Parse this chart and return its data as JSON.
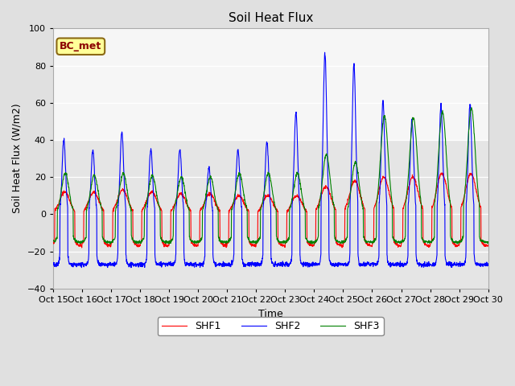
{
  "title": "Soil Heat Flux",
  "ylabel": "Soil Heat Flux (W/m2)",
  "xlabel": "Time",
  "ylim": [
    -40,
    100
  ],
  "yticks": [
    -40,
    -20,
    0,
    20,
    40,
    60,
    80,
    100
  ],
  "xtick_labels": [
    "Oct 15",
    "Oct 16",
    "Oct 17",
    "Oct 18",
    "Oct 19",
    "Oct 20",
    "Oct 21",
    "Oct 22",
    "Oct 23",
    "Oct 24",
    "Oct 25",
    "Oct 26",
    "Oct 27",
    "Oct 28",
    "Oct 29",
    "Oct 30"
  ],
  "line_colors": [
    "red",
    "blue",
    "green"
  ],
  "line_labels": [
    "SHF1",
    "SHF2",
    "SHF3"
  ],
  "annotation_text": "BC_met",
  "annotation_text_color": "#8B0000",
  "annotation_bg_color": "#FFFF99",
  "annotation_border_color": "#8B6914",
  "bg_color": "#E0E0E0",
  "plot_bg_color": "#F0F0F0",
  "shaded_region_light": [
    40,
    100
  ],
  "shaded_region_dark": [
    0,
    40
  ],
  "title_fontsize": 11,
  "axis_label_fontsize": 9,
  "tick_fontsize": 8,
  "legend_fontsize": 9,
  "day_peak_shf1": [
    12,
    12,
    13,
    12,
    11,
    11,
    10,
    10,
    10,
    15,
    18,
    20,
    20,
    22,
    22
  ],
  "day_peak_shf2": [
    40,
    35,
    45,
    35,
    35,
    25,
    35,
    39,
    55,
    87,
    81,
    61,
    51,
    59,
    59
  ],
  "day_peak_shf3": [
    22,
    21,
    22,
    21,
    20,
    20,
    22,
    22,
    22,
    32,
    28,
    53,
    52,
    55,
    57
  ],
  "night_trough_shf1": -17,
  "night_trough_shf2": -27,
  "night_trough_shf3": -15
}
